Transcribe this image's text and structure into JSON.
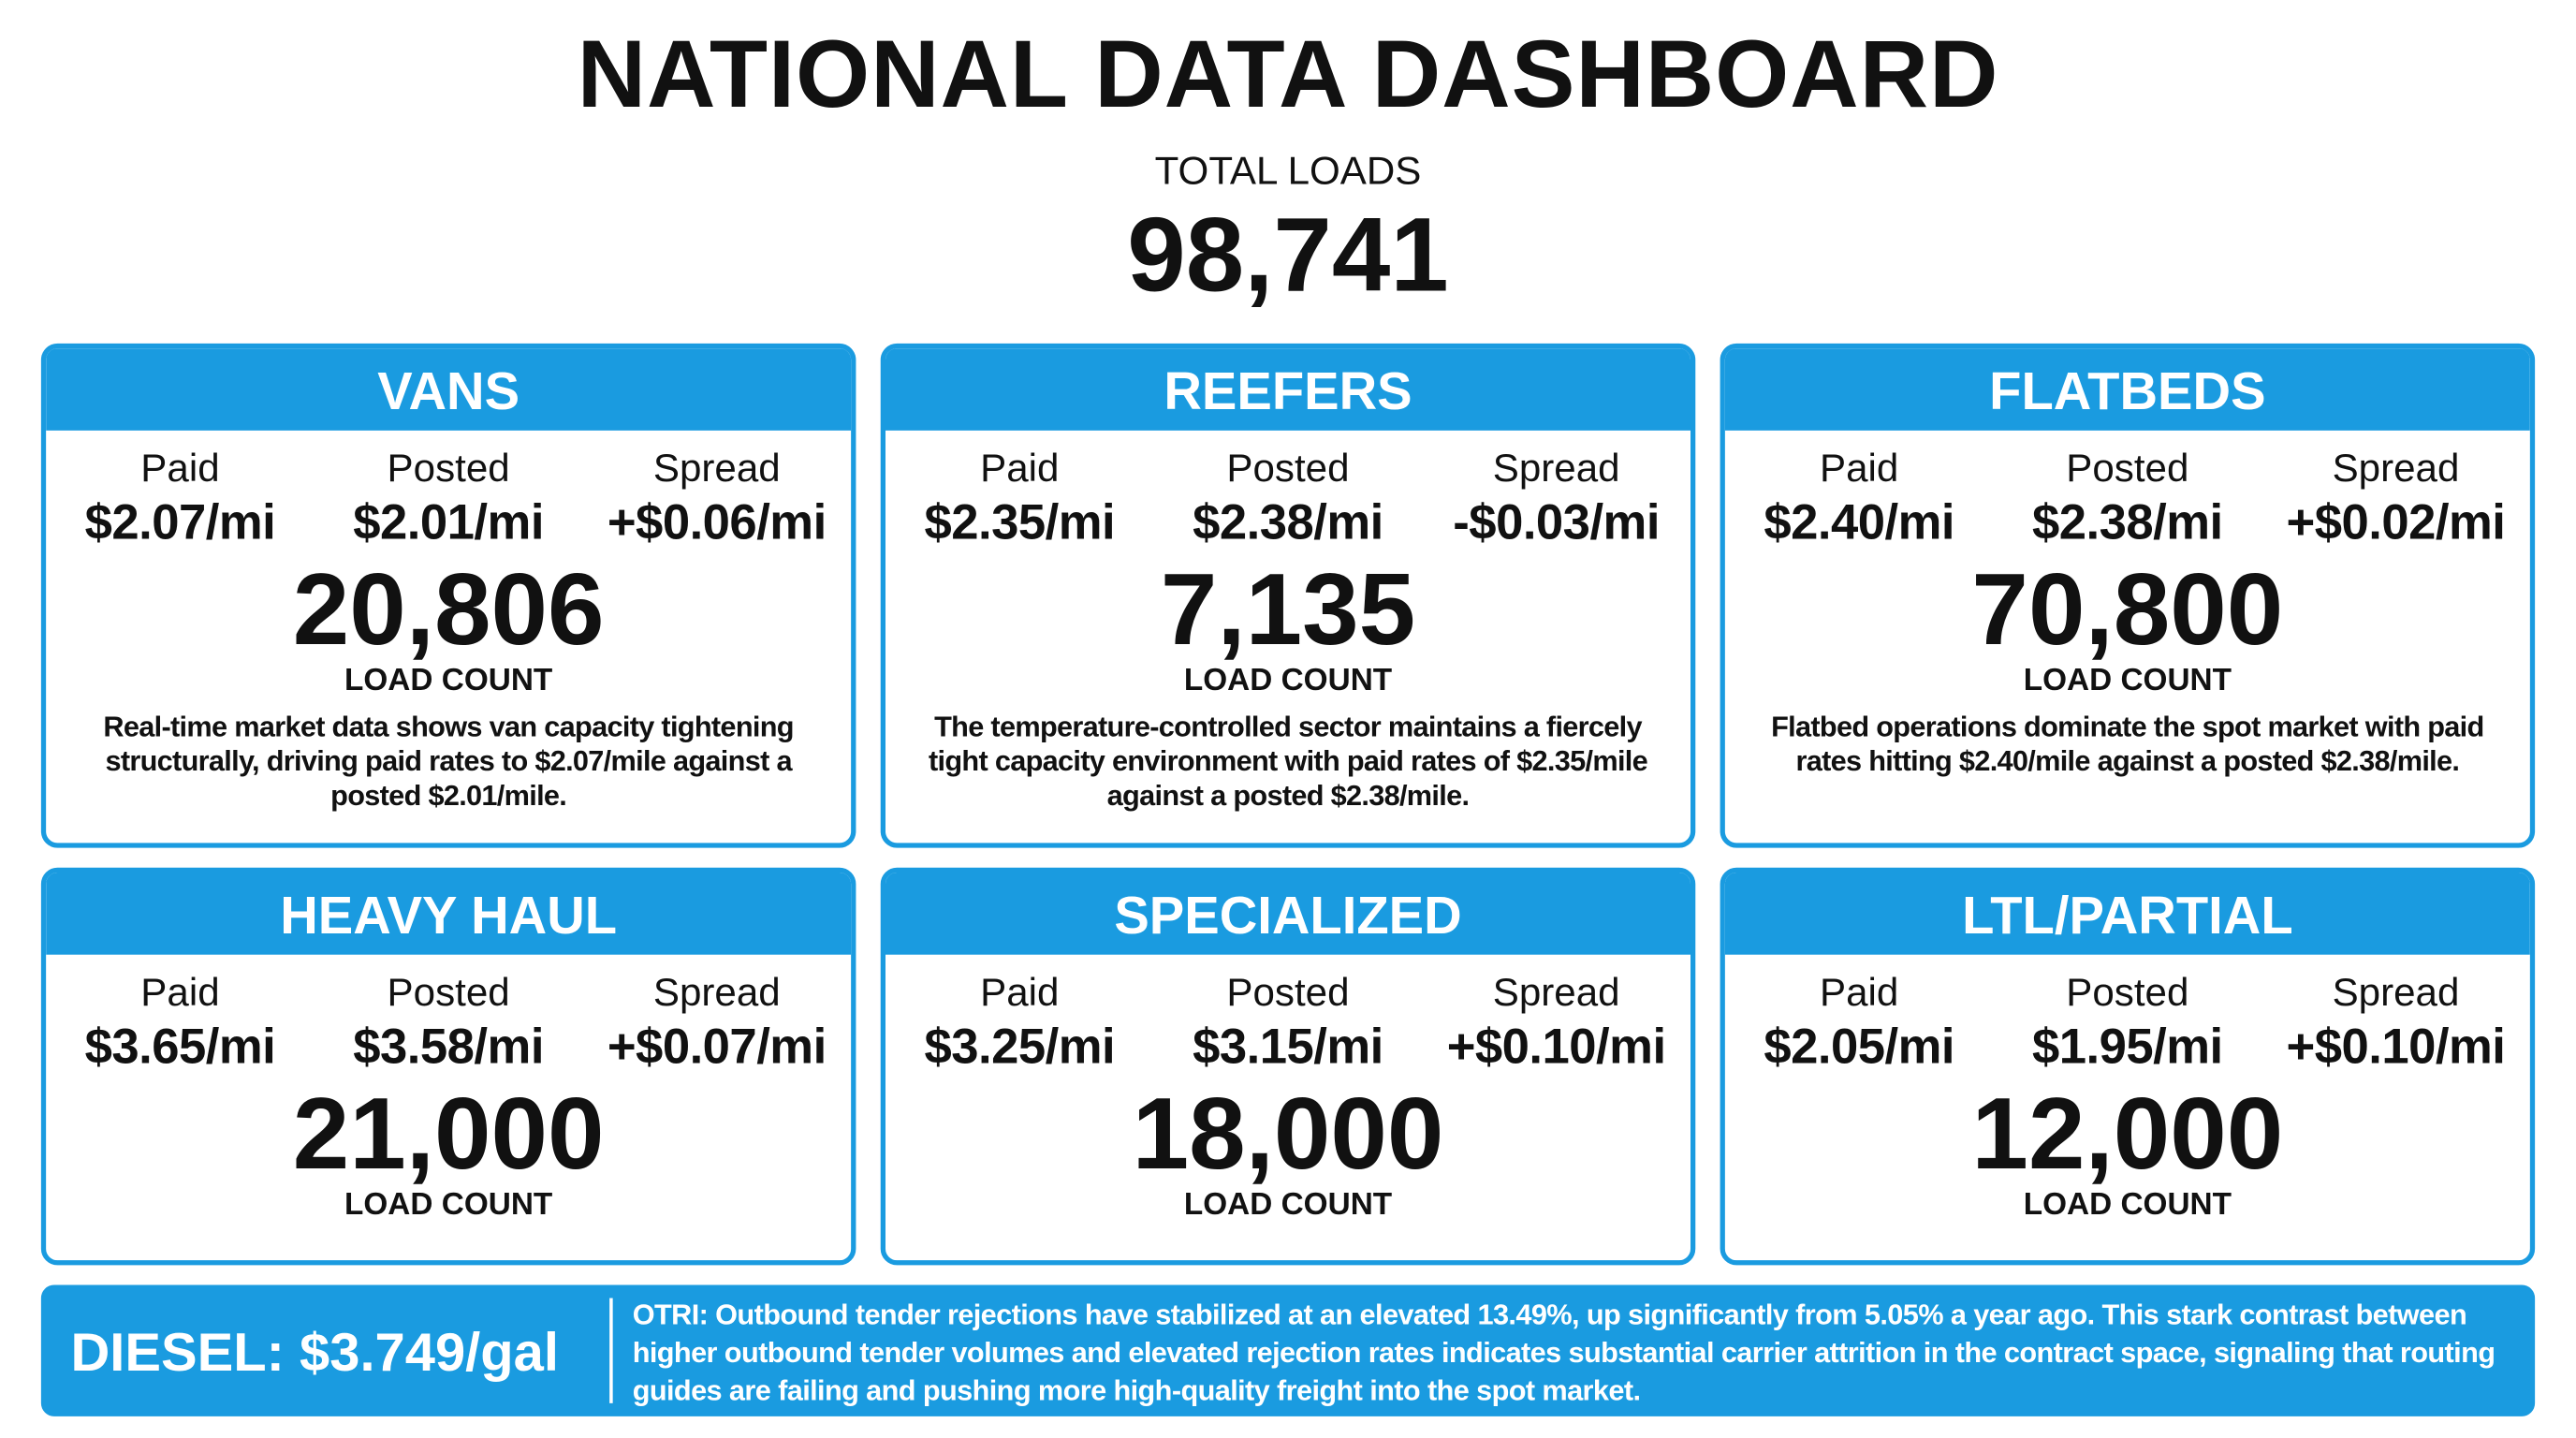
{
  "header": {
    "title": "NATIONAL DATA DASHBOARD"
  },
  "total": {
    "label": "TOTAL LOADS",
    "value": "98,741"
  },
  "cards": [
    {
      "title": "VANS",
      "metrics": [
        {
          "label": "Paid",
          "value": "$2.07/mi"
        },
        {
          "label": "Posted",
          "value": "$2.01/mi"
        },
        {
          "label": "Spread",
          "value": "+$0.06/mi"
        }
      ],
      "count": "20,806",
      "count_label": "LOAD COUNT",
      "description": "Real-time market data shows van capacity tightening structurally, driving paid rates to $2.07/mile against a posted $2.01/mile."
    },
    {
      "title": "REEFERS",
      "metrics": [
        {
          "label": "Paid",
          "value": "$2.35/mi"
        },
        {
          "label": "Posted",
          "value": "$2.38/mi"
        },
        {
          "label": "Spread",
          "value": "-$0.03/mi"
        }
      ],
      "count": "7,135",
      "count_label": "LOAD COUNT",
      "description": "The temperature-controlled sector maintains a fiercely tight capacity environment with paid rates of $2.35/mile against a posted $2.38/mile."
    },
    {
      "title": "FLATBEDS",
      "metrics": [
        {
          "label": "Paid",
          "value": "$2.40/mi"
        },
        {
          "label": "Posted",
          "value": "$2.38/mi"
        },
        {
          "label": "Spread",
          "value": "+$0.02/mi"
        }
      ],
      "count": "70,800",
      "count_label": "LOAD COUNT",
      "description": "Flatbed operations dominate the spot market with paid rates hitting $2.40/mile against a posted $2.38/mile."
    },
    {
      "title": "HEAVY HAUL",
      "metrics": [
        {
          "label": "Paid",
          "value": "$3.65/mi"
        },
        {
          "label": "Posted",
          "value": "$3.58/mi"
        },
        {
          "label": "Spread",
          "value": "+$0.07/mi"
        }
      ],
      "count": "21,000",
      "count_label": "LOAD COUNT"
    },
    {
      "title": "SPECIALIZED",
      "metrics": [
        {
          "label": "Paid",
          "value": "$3.25/mi"
        },
        {
          "label": "Posted",
          "value": "$3.15/mi"
        },
        {
          "label": "Spread",
          "value": "+$0.10/mi"
        }
      ],
      "count": "18,000",
      "count_label": "LOAD COUNT"
    },
    {
      "title": "LTL/PARTIAL",
      "metrics": [
        {
          "label": "Paid",
          "value": "$2.05/mi"
        },
        {
          "label": "Posted",
          "value": "$1.95/mi"
        },
        {
          "label": "Spread",
          "value": "+$0.10/mi"
        }
      ],
      "count": "12,000",
      "count_label": "LOAD COUNT"
    }
  ],
  "footer": {
    "diesel": "DIESEL: $3.749/gal",
    "note": "OTRI: Outbound tender rejections have stabilized at an elevated 13.49%, up significantly from 5.05% a year ago. This stark contrast between higher outbound tender volumes and elevated rejection rates indicates substantial carrier attrition in the contract space, signaling that routing guides are failing and pushing more high-quality freight into the spot market."
  }
}
